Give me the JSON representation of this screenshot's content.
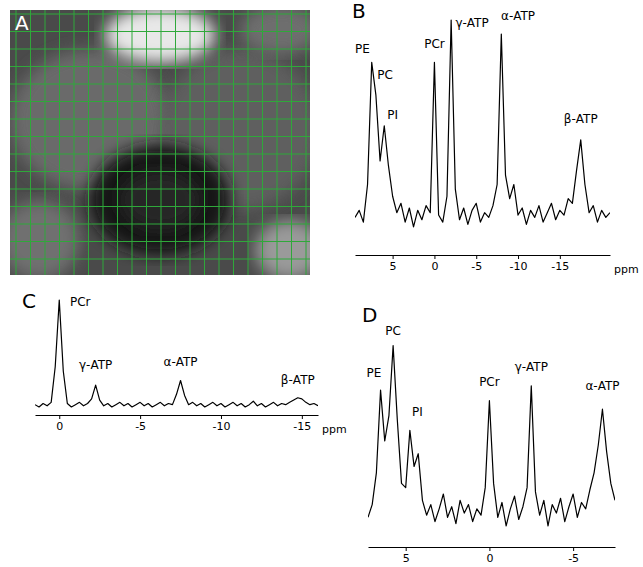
{
  "image_panel": {
    "panel": "A"
  },
  "chart_data": [
    {
      "type": "line",
      "panel": "B",
      "color": "#000000",
      "tick_labels": "x",
      "x_label": "ppm",
      "xlim": [
        9.5,
        -21
      ],
      "xticks": [
        5,
        0,
        -5,
        -10,
        -15
      ],
      "ylim": [
        0,
        100
      ],
      "x": [
        9.5,
        9,
        8.5,
        8,
        7.5,
        7,
        6.5,
        6,
        5.5,
        5,
        4.5,
        4,
        3.5,
        3,
        2.5,
        2,
        1.5,
        1,
        0.5,
        0,
        -0.5,
        -1,
        -1.5,
        -2,
        -2.5,
        -3,
        -3.5,
        -4,
        -4.5,
        -5,
        -5.5,
        -6,
        -6.5,
        -7,
        -7.5,
        -8,
        -8.5,
        -9,
        -9.5,
        -10,
        -10.5,
        -11,
        -11.5,
        -12,
        -12.5,
        -13,
        -13.5,
        -14,
        -14.5,
        -15,
        -15.5,
        -16,
        -16.5,
        -17,
        -17.5,
        -18,
        -18.5,
        -19,
        -19.5,
        -20,
        -20.5,
        -21
      ],
      "values": [
        16,
        19,
        14,
        30,
        82,
        68,
        40,
        55,
        38,
        25,
        18,
        22,
        14,
        20,
        12,
        19,
        15,
        21,
        18,
        82,
        17,
        14,
        25,
        100,
        28,
        15,
        20,
        13,
        19,
        22,
        14,
        18,
        16,
        21,
        30,
        94,
        34,
        24,
        30,
        17,
        20,
        13,
        19,
        16,
        21,
        14,
        18,
        22,
        15,
        19,
        17,
        24,
        22,
        36,
        49,
        30,
        18,
        21,
        14,
        19,
        16,
        18
      ],
      "annotations": [
        {
          "text": "PE",
          "x": 8.6,
          "y": 86
        },
        {
          "text": "PC",
          "x": 5.9,
          "y": 75
        },
        {
          "text": "PI",
          "x": 5.0,
          "y": 58
        },
        {
          "text": "PCr",
          "x": 0,
          "y": 88
        },
        {
          "text": "γ-ATP",
          "x": -4.5,
          "y": 97
        },
        {
          "text": "α-ATP",
          "x": -10,
          "y": 100
        },
        {
          "text": "β-ATP",
          "x": -17.5,
          "y": 56
        }
      ]
    },
    {
      "type": "line",
      "panel": "C",
      "color": "#000000",
      "tick_labels": "x",
      "x_label": "ppm",
      "xlim": [
        1.5,
        -16
      ],
      "xticks": [
        0,
        -5,
        -10,
        -15
      ],
      "ylim": [
        0,
        100
      ],
      "x": [
        1.5,
        1.25,
        1,
        0.75,
        0.5,
        0.25,
        0,
        -0.25,
        -0.5,
        -0.75,
        -1,
        -1.25,
        -1.5,
        -1.75,
        -2,
        -2.25,
        -2.5,
        -2.75,
        -3,
        -3.25,
        -3.5,
        -3.75,
        -4,
        -4.25,
        -4.5,
        -4.75,
        -5,
        -5.25,
        -5.5,
        -5.75,
        -6,
        -6.25,
        -6.5,
        -6.75,
        -7,
        -7.25,
        -7.5,
        -7.75,
        -8,
        -8.25,
        -8.5,
        -8.75,
        -9,
        -9.25,
        -9.5,
        -9.75,
        -10,
        -10.25,
        -10.5,
        -10.75,
        -11,
        -11.25,
        -11.5,
        -11.75,
        -12,
        -12.25,
        -12.5,
        -12.75,
        -13,
        -13.25,
        -13.5,
        -13.75,
        -14,
        -14.25,
        -14.5,
        -14.75,
        -15,
        -15.25,
        -15.5,
        -15.75,
        -16
      ],
      "values": [
        9,
        7,
        10,
        8,
        11,
        42,
        100,
        38,
        10,
        7,
        9,
        11,
        8,
        10,
        14,
        26,
        13,
        8,
        10,
        7,
        9,
        11,
        8,
        10,
        7,
        9,
        11,
        8,
        10,
        7,
        9,
        11,
        8,
        10,
        9,
        18,
        30,
        17,
        9,
        11,
        8,
        10,
        7,
        9,
        11,
        8,
        10,
        7,
        9,
        11,
        8,
        10,
        7,
        9,
        12,
        8,
        10,
        7,
        9,
        11,
        8,
        10,
        9,
        11,
        13,
        15,
        14,
        11,
        9,
        10,
        8
      ],
      "annotations": [
        {
          "text": "PCr",
          "x": -1.3,
          "y": 95
        },
        {
          "text": "γ-ATP",
          "x": -2.25,
          "y": 40
        },
        {
          "text": "α-ATP",
          "x": -7.5,
          "y": 43
        },
        {
          "text": "β-ATP",
          "x": -14.75,
          "y": 27
        }
      ]
    },
    {
      "type": "line",
      "panel": "D",
      "color": "#000000",
      "tick_labels": "x",
      "xlim": [
        7.25,
        -7.5
      ],
      "xticks": [
        5,
        0,
        -5
      ],
      "ylim": [
        0,
        100
      ],
      "x": [
        7.25,
        7,
        6.75,
        6.5,
        6.25,
        6,
        5.75,
        5.5,
        5.25,
        5,
        4.75,
        4.5,
        4.25,
        4,
        3.75,
        3.5,
        3.25,
        3,
        2.75,
        2.5,
        2.25,
        2,
        1.75,
        1.5,
        1.25,
        1,
        0.75,
        0.5,
        0.25,
        0,
        -0.25,
        -0.5,
        -0.75,
        -1,
        -1.25,
        -1.5,
        -1.75,
        -2,
        -2.25,
        -2.5,
        -2.75,
        -3,
        -3.25,
        -3.5,
        -3.75,
        -4,
        -4.25,
        -4.5,
        -4.75,
        -5,
        -5.25,
        -5.5,
        -5.75,
        -6,
        -6.25,
        -6.5,
        -6.75,
        -7,
        -7.25,
        -7.5
      ],
      "values": [
        14,
        20,
        35,
        74,
        50,
        62,
        95,
        60,
        30,
        28,
        55,
        38,
        44,
        22,
        15,
        20,
        12,
        18,
        25,
        14,
        19,
        11,
        22,
        16,
        20,
        12,
        18,
        15,
        28,
        69,
        30,
        14,
        21,
        10,
        18,
        24,
        13,
        19,
        28,
        76,
        26,
        15,
        22,
        10,
        20,
        16,
        23,
        12,
        19,
        25,
        14,
        21,
        18,
        27,
        35,
        48,
        65,
        45,
        30,
        22
      ],
      "annotations": [
        {
          "text": "PE",
          "x": 6.9,
          "y": 80
        },
        {
          "text": "PC",
          "x": 5.75,
          "y": 100
        },
        {
          "text": "PI",
          "x": 4.3,
          "y": 62
        },
        {
          "text": "PCr",
          "x": 0,
          "y": 76
        },
        {
          "text": "γ-ATP",
          "x": -2.5,
          "y": 83
        },
        {
          "text": "α-ATP",
          "x": -6.75,
          "y": 74
        }
      ]
    }
  ]
}
